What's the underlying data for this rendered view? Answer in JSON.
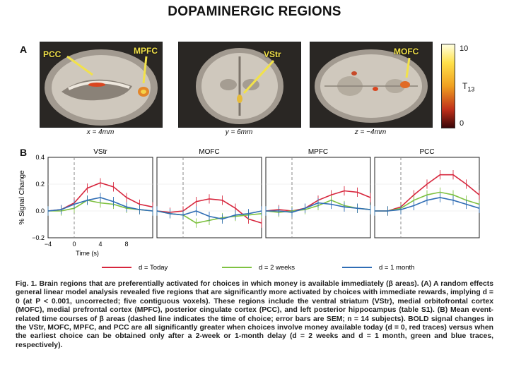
{
  "title": "DOPAMINERGIC REGIONS",
  "panel_a": {
    "letter": "A",
    "slices": [
      {
        "rois": [
          "PCC",
          "MPFC"
        ],
        "coord": "x = 4mm"
      },
      {
        "rois": [
          "VStr"
        ],
        "coord": "y = 6mm"
      },
      {
        "rois": [
          "MOFC"
        ],
        "coord": "z = −4mm"
      }
    ],
    "colorbar": {
      "max": "10",
      "min": "0",
      "label": "T",
      "label_sub": "13"
    }
  },
  "panel_b": {
    "letter": "B"
  },
  "chart_data": {
    "type": "line",
    "ylabel": "% Signal Change",
    "xlabel": "Time (s)",
    "ylim": [
      -0.2,
      0.4
    ],
    "yticks": [
      "0.4",
      "0.2",
      "0.0",
      "−0.2"
    ],
    "xticks": [
      "−4",
      "0",
      "4",
      "8"
    ],
    "x": [
      -4,
      -2,
      0,
      2,
      4,
      6,
      8,
      10,
      12
    ],
    "panels": [
      {
        "title": "VStr",
        "series": [
          {
            "name": "d = Today",
            "color": "#d7263d",
            "values": [
              0.0,
              0.01,
              0.06,
              0.17,
              0.21,
              0.18,
              0.1,
              0.05,
              0.03
            ]
          },
          {
            "name": "d = 2 weeks",
            "color": "#7fc241",
            "values": [
              0.0,
              0.0,
              0.02,
              0.08,
              0.06,
              0.05,
              0.02,
              0.01,
              0.0
            ]
          },
          {
            "name": "d = 1 month",
            "color": "#2f6db5",
            "values": [
              0.0,
              0.01,
              0.05,
              0.08,
              0.1,
              0.07,
              0.03,
              0.01,
              0.0
            ]
          }
        ]
      },
      {
        "title": "MOFC",
        "series": [
          {
            "name": "d = Today",
            "color": "#d7263d",
            "values": [
              0.0,
              -0.01,
              0.0,
              0.07,
              0.09,
              0.08,
              0.02,
              -0.06,
              -0.09
            ]
          },
          {
            "name": "d = 2 weeks",
            "color": "#7fc241",
            "values": [
              0.0,
              -0.02,
              -0.03,
              -0.09,
              -0.07,
              -0.05,
              -0.04,
              -0.03,
              -0.02
            ]
          },
          {
            "name": "d = 1 month",
            "color": "#2f6db5",
            "values": [
              0.0,
              -0.02,
              -0.03,
              0.0,
              -0.04,
              -0.06,
              -0.03,
              -0.02,
              0.0
            ]
          }
        ]
      },
      {
        "title": "MPFC",
        "series": [
          {
            "name": "d = Today",
            "color": "#d7263d",
            "values": [
              0.0,
              0.01,
              0.0,
              0.02,
              0.08,
              0.12,
              0.15,
              0.14,
              0.1
            ]
          },
          {
            "name": "d = 2 weeks",
            "color": "#7fc241",
            "values": [
              0.0,
              -0.01,
              0.0,
              0.01,
              0.04,
              0.08,
              0.04,
              0.02,
              0.01
            ]
          },
          {
            "name": "d = 1 month",
            "color": "#2f6db5",
            "values": [
              0.0,
              0.0,
              -0.01,
              0.02,
              0.06,
              0.05,
              0.03,
              0.02,
              0.01
            ]
          }
        ]
      },
      {
        "title": "PCC",
        "series": [
          {
            "name": "d = Today",
            "color": "#d7263d",
            "values": [
              0.0,
              0.0,
              0.03,
              0.12,
              0.2,
              0.27,
              0.27,
              0.2,
              0.12
            ]
          },
          {
            "name": "d = 2 weeks",
            "color": "#7fc241",
            "values": [
              0.0,
              0.0,
              0.02,
              0.08,
              0.12,
              0.14,
              0.12,
              0.08,
              0.05
            ]
          },
          {
            "name": "d = 1 month",
            "color": "#2f6db5",
            "values": [
              0.0,
              0.0,
              0.01,
              0.04,
              0.08,
              0.1,
              0.08,
              0.05,
              0.02
            ]
          }
        ]
      }
    ],
    "legend": [
      {
        "label": "d = Today",
        "color": "#d7263d"
      },
      {
        "label": "d = 2 weeks",
        "color": "#7fc241"
      },
      {
        "label": "d = 1 month",
        "color": "#2f6db5"
      }
    ]
  },
  "caption": "Fig. 1. Brain regions that are preferentially activated for choices in which money is available immediately (β areas). (A) A random effects general linear model analysis revealed five regions that are significantly more activated by choices with immediate rewards, implying d = 0 (at P < 0.001, uncorrected; five contiguous voxels). These regions include the ventral striatum (VStr), medial orbitofrontal cortex (MOFC), medial prefrontal cortex (MPFC), posterior cingulate cortex (PCC), and left posterior hippocampus (table S1). (B) Mean event-related time courses of β areas (dashed line indicates the time of choice; error bars are SEM; n = 14 subjects). BOLD signal changes in the VStr, MOFC, MPFC, and PCC are all significantly greater when choices involve money available today (d = 0, red traces) versus when the earliest choice can be obtained only after a 2-week or 1-month delay (d = 2 weeks and d = 1 month, green and blue traces, respectively)."
}
